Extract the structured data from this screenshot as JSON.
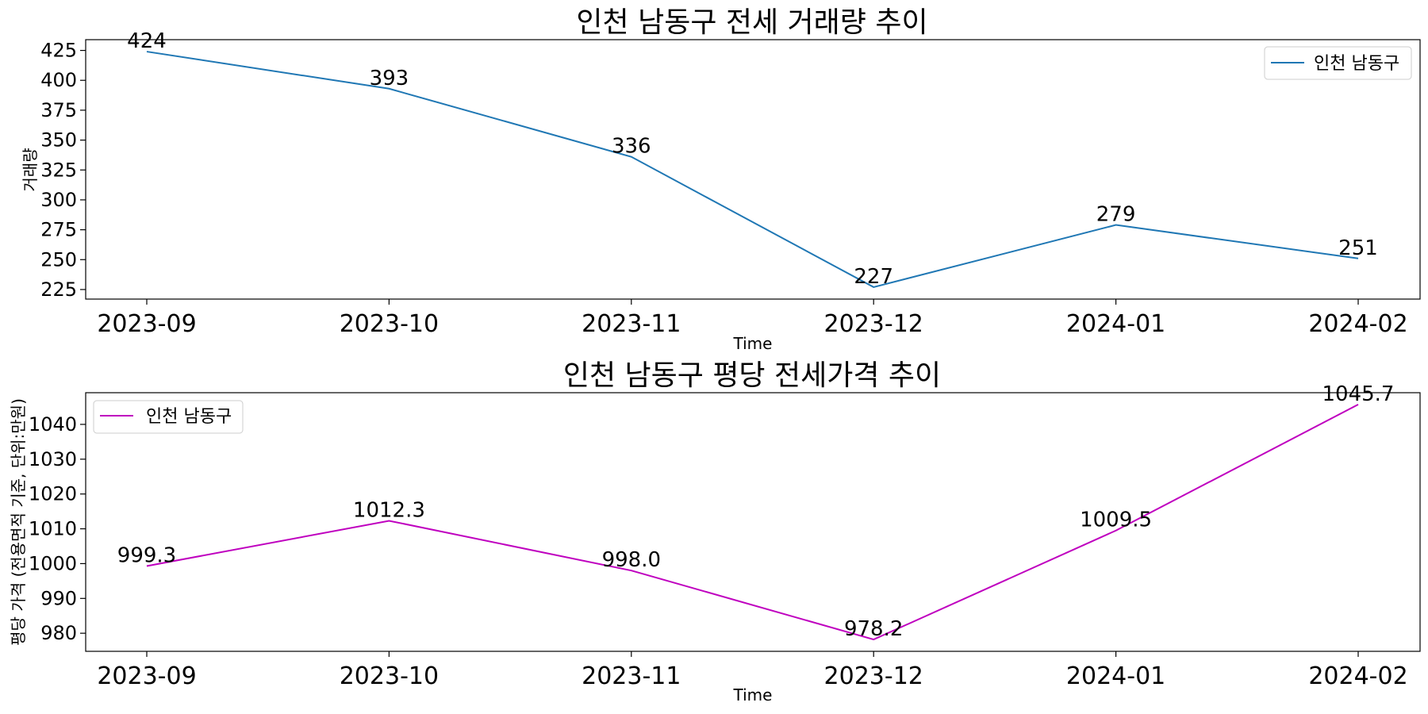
{
  "chart_data": [
    {
      "type": "line",
      "title": "인천 남동구 전세 거래량 추이",
      "xlabel": "Time",
      "ylabel": "거래량",
      "categories": [
        "2023-09",
        "2023-10",
        "2023-11",
        "2023-12",
        "2024-01",
        "2024-02"
      ],
      "series": [
        {
          "name": "인천 남동구",
          "values": [
            424,
            393,
            336,
            227,
            279,
            251
          ],
          "labels": [
            "424",
            "393",
            "336",
            "227",
            "279",
            "251"
          ],
          "color": "#1f77b4"
        }
      ],
      "ylim": [
        217,
        434
      ],
      "yticks": [
        225,
        250,
        275,
        300,
        325,
        350,
        375,
        400,
        425
      ],
      "legend": "top-right",
      "grid": false
    },
    {
      "type": "line",
      "title": "인천 남동구 평당 전세가격 추이",
      "xlabel": "Time",
      "ylabel": "평당 가격 (전용면적 기준, 단위:만원)",
      "categories": [
        "2023-09",
        "2023-10",
        "2023-11",
        "2023-12",
        "2024-01",
        "2024-02"
      ],
      "series": [
        {
          "name": "인천 남동구",
          "values": [
            999.3,
            1012.3,
            998.0,
            978.2,
            1009.5,
            1045.7
          ],
          "labels": [
            "999.3",
            "1012.3",
            "998.0",
            "978.2",
            "1009.5",
            "1045.7"
          ],
          "color": "#bf00bf"
        }
      ],
      "ylim": [
        974.8,
        1049.1
      ],
      "yticks": [
        980,
        990,
        1000,
        1010,
        1020,
        1030,
        1040
      ],
      "legend": "top-left",
      "grid": false
    }
  ]
}
